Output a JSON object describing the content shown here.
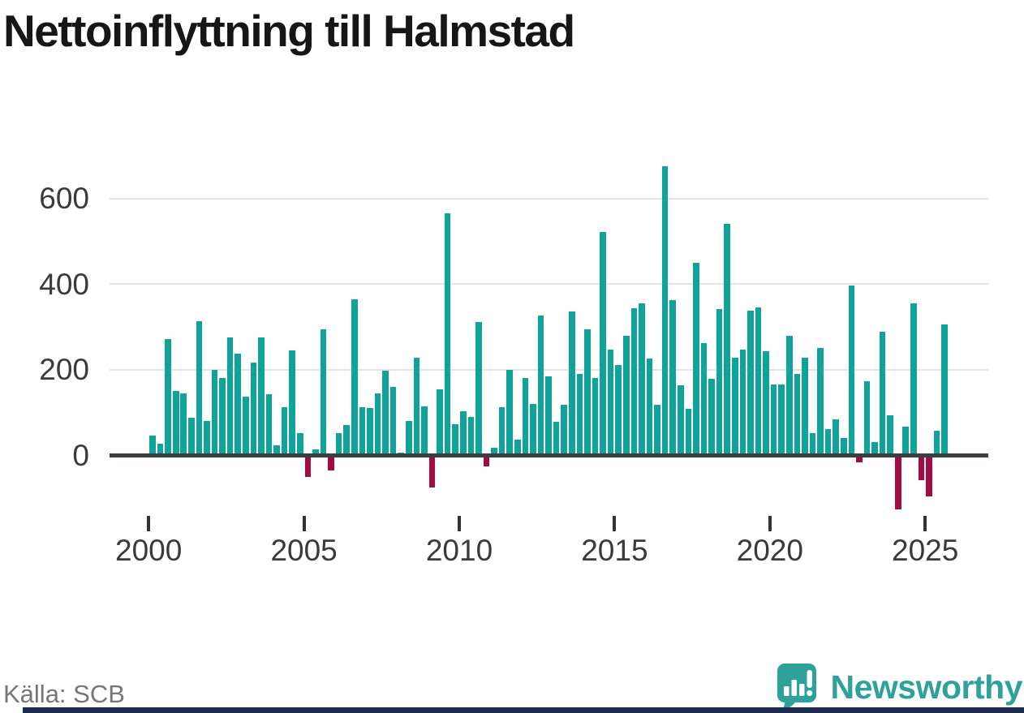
{
  "title": "Nettoinflyttning till Halmstad",
  "source": "Källa: SCB",
  "brand": {
    "name": "Newsworthy"
  },
  "colors": {
    "positive": "#10a39a",
    "negative": "#a20b44",
    "axis": "#3a3f42",
    "grid": "#e3e3e3",
    "tick_label": "#3a3a3a",
    "title": "#161616",
    "source_text": "#767676",
    "brand_teal": "#2ea29a",
    "footer_bar": "#1e2a4b"
  },
  "chart_data": {
    "type": "bar",
    "title": "Nettoinflyttning till Halmstad",
    "frequency": "quarterly",
    "start_year": 2000,
    "start_quarter": 1,
    "xlabel": "",
    "ylabel": "",
    "x_tick_labels": [
      "2000",
      "2005",
      "2010",
      "2015",
      "2020",
      "2025"
    ],
    "y_ticks": [
      0,
      200,
      400,
      600
    ],
    "ylim": [
      -150,
      700
    ],
    "grid": "horizontal",
    "legend": "none",
    "values": [
      45,
      27,
      272,
      149,
      144,
      88,
      313,
      79,
      199,
      181,
      274,
      237,
      136,
      217,
      274,
      143,
      22,
      112,
      244,
      51,
      -45,
      14,
      294,
      -30,
      51,
      71,
      364,
      112,
      110,
      145,
      198,
      160,
      5,
      80,
      228,
      113,
      -70,
      153,
      565,
      72,
      103,
      90,
      311,
      -20,
      18,
      111,
      199,
      36,
      181,
      119,
      327,
      184,
      77,
      117,
      335,
      189,
      293,
      180,
      522,
      247,
      211,
      279,
      344,
      354,
      225,
      117,
      675,
      362,
      163,
      108,
      450,
      262,
      178,
      341,
      540,
      227,
      246,
      338,
      345,
      243,
      164,
      164,
      279,
      189,
      227,
      51,
      251,
      60,
      84,
      40,
      397,
      -11,
      172,
      31,
      289,
      93,
      -121,
      66,
      354,
      -53,
      -91,
      57,
      306
    ]
  }
}
